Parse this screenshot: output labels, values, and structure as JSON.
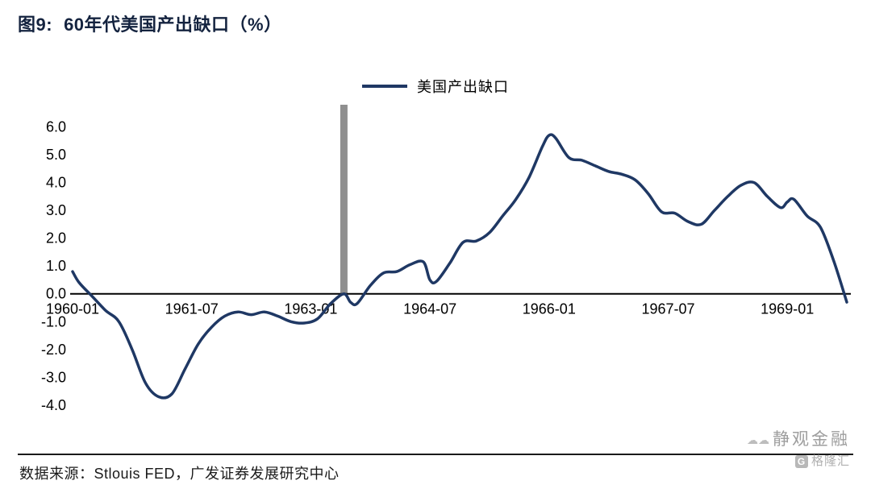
{
  "title": {
    "figure_label": "图9:",
    "text": "60年代美国产出缺口（%）"
  },
  "legend": {
    "label": "美国产出缺口"
  },
  "source": {
    "label": "数据来源：Stlouis FED，广发证券发展研究中心"
  },
  "watermark": {
    "clouds_glyphs": "☁☁",
    "name": "静观金融",
    "logo_letter": "G",
    "logo_text": "格隆汇"
  },
  "colors": {
    "line": "#1f3864",
    "axis": "#000000",
    "annotation_bar": "#8f8f8f",
    "text": "#000000",
    "title": "#14233f",
    "watermark": "#9e9e9e"
  },
  "chart_data": {
    "type": "line",
    "title": "60年代美国产出缺口（%）",
    "unit": "%",
    "grid": false,
    "legend_position": "top-center",
    "x_tick_labels": [
      "1960-01",
      "1961-07",
      "1963-01",
      "1964-07",
      "1966-01",
      "1967-07",
      "1969-01"
    ],
    "y_ticks": [
      6,
      5,
      4,
      3,
      2,
      1,
      0,
      -1,
      -2,
      -3,
      -4
    ],
    "ylim": [
      -4.15,
      6.8
    ],
    "xlim_months": [
      "1960-01",
      "1969-10"
    ],
    "annotation": {
      "type": "vertical-bar",
      "x": "1963-06",
      "y_from": 0,
      "y_to": 6.8,
      "color": "#8f8f8f"
    },
    "series": [
      {
        "name": "美国产出缺口",
        "color": "#1f3864",
        "x": [
          "1960-01",
          "1960-02",
          "1960-04",
          "1960-06",
          "1960-08",
          "1960-10",
          "1960-12",
          "1961-02",
          "1961-04",
          "1961-06",
          "1961-08",
          "1961-10",
          "1961-12",
          "1962-02",
          "1962-04",
          "1962-06",
          "1962-08",
          "1962-10",
          "1962-12",
          "1963-02",
          "1963-04",
          "1963-06",
          "1963-07",
          "1963-08",
          "1963-10",
          "1963-12",
          "1964-02",
          "1964-04",
          "1964-06",
          "1964-07",
          "1964-08",
          "1964-10",
          "1964-12",
          "1965-02",
          "1965-04",
          "1965-06",
          "1965-08",
          "1965-10",
          "1965-12",
          "1966-01",
          "1966-02",
          "1966-04",
          "1966-06",
          "1966-08",
          "1966-10",
          "1966-12",
          "1967-02",
          "1967-04",
          "1967-06",
          "1967-08",
          "1967-10",
          "1967-12",
          "1968-02",
          "1968-04",
          "1968-06",
          "1968-08",
          "1968-10",
          "1968-12",
          "1969-01",
          "1969-02",
          "1969-04",
          "1969-06",
          "1969-08",
          "1969-10"
        ],
        "values": [
          0.8,
          0.4,
          -0.1,
          -0.6,
          -1.0,
          -2.0,
          -3.2,
          -3.7,
          -3.6,
          -2.7,
          -1.8,
          -1.2,
          -0.8,
          -0.65,
          -0.75,
          -0.65,
          -0.8,
          -1.0,
          -1.05,
          -0.9,
          -0.35,
          0.0,
          -0.3,
          -0.35,
          0.3,
          0.75,
          0.8,
          1.05,
          1.15,
          0.5,
          0.45,
          1.1,
          1.85,
          1.9,
          2.2,
          2.8,
          3.4,
          4.2,
          5.3,
          5.7,
          5.6,
          4.9,
          4.8,
          4.6,
          4.4,
          4.3,
          4.1,
          3.6,
          2.95,
          2.9,
          2.6,
          2.5,
          3.0,
          3.5,
          3.9,
          4.0,
          3.5,
          3.1,
          3.3,
          3.4,
          2.8,
          2.4,
          1.2,
          -0.3
        ]
      }
    ]
  }
}
